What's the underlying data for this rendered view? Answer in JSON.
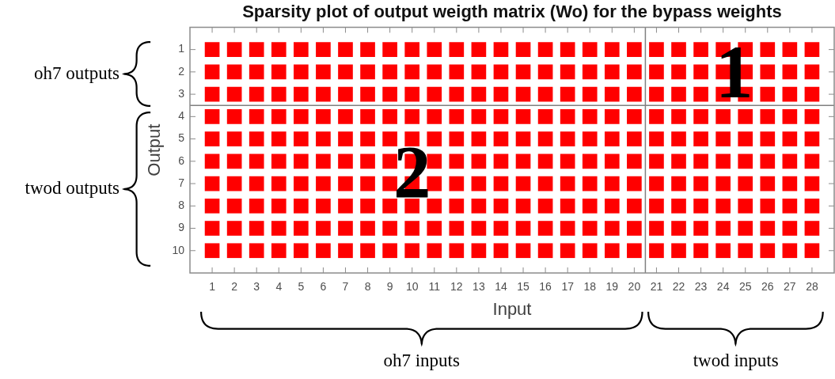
{
  "chart_data": {
    "type": "scatter",
    "title": "Sparsity plot of output weigth matrix (Wo) for the bypass weights",
    "xlabel": "Input",
    "ylabel": "Output",
    "x": [
      1,
      2,
      3,
      4,
      5,
      6,
      7,
      8,
      9,
      10,
      11,
      12,
      13,
      14,
      15,
      16,
      17,
      18,
      19,
      20,
      21,
      22,
      23,
      24,
      25,
      26,
      27,
      28,
      1,
      2,
      3,
      4,
      5,
      6,
      7,
      8,
      9,
      10,
      11,
      12,
      13,
      14,
      15,
      16,
      17,
      18,
      19,
      20,
      21,
      22,
      23,
      24,
      25,
      26,
      27,
      28,
      1,
      2,
      3,
      4,
      5,
      6,
      7,
      8,
      9,
      10,
      11,
      12,
      13,
      14,
      15,
      16,
      17,
      18,
      19,
      20,
      21,
      22,
      23,
      24,
      25,
      26,
      27,
      28,
      1,
      2,
      3,
      4,
      5,
      6,
      7,
      8,
      9,
      10,
      11,
      12,
      13,
      14,
      15,
      16,
      17,
      18,
      19,
      20,
      21,
      22,
      23,
      24,
      25,
      26,
      27,
      28,
      1,
      2,
      3,
      4,
      5,
      6,
      7,
      8,
      9,
      10,
      11,
      12,
      13,
      14,
      15,
      16,
      17,
      18,
      19,
      20,
      21,
      22,
      23,
      24,
      25,
      26,
      27,
      28,
      1,
      2,
      3,
      4,
      5,
      6,
      7,
      8,
      9,
      10,
      11,
      12,
      13,
      14,
      15,
      16,
      17,
      18,
      19,
      20,
      21,
      22,
      23,
      24,
      25,
      26,
      27,
      28,
      1,
      2,
      3,
      4,
      5,
      6,
      7,
      8,
      9,
      10,
      11,
      12,
      13,
      14,
      15,
      16,
      17,
      18,
      19,
      20,
      21,
      22,
      23,
      24,
      25,
      26,
      27,
      28,
      1,
      2,
      3,
      4,
      5,
      6,
      7,
      8,
      9,
      10,
      11,
      12,
      13,
      14,
      15,
      16,
      17,
      18,
      19,
      20,
      21,
      22,
      23,
      24,
      25,
      26,
      27,
      28,
      1,
      2,
      3,
      4,
      5,
      6,
      7,
      8,
      9,
      10,
      11,
      12,
      13,
      14,
      15,
      16,
      17,
      18,
      19,
      20,
      21,
      22,
      23,
      24,
      25,
      26,
      27,
      28,
      1,
      2,
      3,
      4,
      5,
      6,
      7,
      8,
      9,
      10,
      11,
      12,
      13,
      14,
      15,
      16,
      17,
      18,
      19,
      20,
      21,
      22,
      23,
      24,
      25,
      26,
      27,
      28
    ],
    "values": [
      1,
      1,
      1,
      1,
      1,
      1,
      1,
      1,
      1,
      1,
      1,
      1,
      1,
      1,
      1,
      1,
      1,
      1,
      1,
      1,
      1,
      1,
      1,
      1,
      1,
      1,
      1,
      1,
      2,
      2,
      2,
      2,
      2,
      2,
      2,
      2,
      2,
      2,
      2,
      2,
      2,
      2,
      2,
      2,
      2,
      2,
      2,
      2,
      2,
      2,
      2,
      2,
      2,
      2,
      2,
      2,
      3,
      3,
      3,
      3,
      3,
      3,
      3,
      3,
      3,
      3,
      3,
      3,
      3,
      3,
      3,
      3,
      3,
      3,
      3,
      3,
      3,
      3,
      3,
      3,
      3,
      3,
      3,
      3,
      4,
      4,
      4,
      4,
      4,
      4,
      4,
      4,
      4,
      4,
      4,
      4,
      4,
      4,
      4,
      4,
      4,
      4,
      4,
      4,
      4,
      4,
      4,
      4,
      4,
      4,
      4,
      4,
      5,
      5,
      5,
      5,
      5,
      5,
      5,
      5,
      5,
      5,
      5,
      5,
      5,
      5,
      5,
      5,
      5,
      5,
      5,
      5,
      5,
      5,
      5,
      5,
      5,
      5,
      5,
      5,
      6,
      6,
      6,
      6,
      6,
      6,
      6,
      6,
      6,
      6,
      6,
      6,
      6,
      6,
      6,
      6,
      6,
      6,
      6,
      6,
      6,
      6,
      6,
      6,
      6,
      6,
      6,
      6,
      7,
      7,
      7,
      7,
      7,
      7,
      7,
      7,
      7,
      7,
      7,
      7,
      7,
      7,
      7,
      7,
      7,
      7,
      7,
      7,
      7,
      7,
      7,
      7,
      7,
      7,
      7,
      7,
      8,
      8,
      8,
      8,
      8,
      8,
      8,
      8,
      8,
      8,
      8,
      8,
      8,
      8,
      8,
      8,
      8,
      8,
      8,
      8,
      8,
      8,
      8,
      8,
      8,
      8,
      8,
      8,
      9,
      9,
      9,
      9,
      9,
      9,
      9,
      9,
      9,
      9,
      9,
      9,
      9,
      9,
      9,
      9,
      9,
      9,
      9,
      9,
      9,
      9,
      9,
      9,
      9,
      9,
      9,
      9,
      10,
      10,
      10,
      10,
      10,
      10,
      10,
      10,
      10,
      10,
      10,
      10,
      10,
      10,
      10,
      10,
      10,
      10,
      10,
      10,
      10,
      10,
      10,
      10,
      10,
      10,
      10,
      10
    ],
    "color": "#ff0000",
    "marker": "square",
    "xlim": [
      0,
      29
    ],
    "xticks": [
      1,
      2,
      3,
      4,
      5,
      6,
      7,
      8,
      9,
      10,
      11,
      12,
      13,
      14,
      15,
      16,
      17,
      18,
      19,
      20,
      21,
      22,
      23,
      24,
      25,
      26,
      27,
      28
    ],
    "ylim": [
      11,
      0
    ],
    "yticks": [
      1,
      2,
      3,
      4,
      5,
      6,
      7,
      8,
      9,
      10
    ],
    "ref_lines": [
      {
        "axis": "x",
        "value": 20.5,
        "color": "#808080"
      },
      {
        "axis": "y",
        "value": 3.5,
        "color": "#808080"
      }
    ],
    "annotations": [
      {
        "text": "1",
        "x": 24.5,
        "y": 2
      },
      {
        "text": "2",
        "x": 10,
        "y": 6.5
      },
      "oh7 outputs",
      "twod outputs",
      "oh7 inputs",
      "twod inputs"
    ]
  }
}
